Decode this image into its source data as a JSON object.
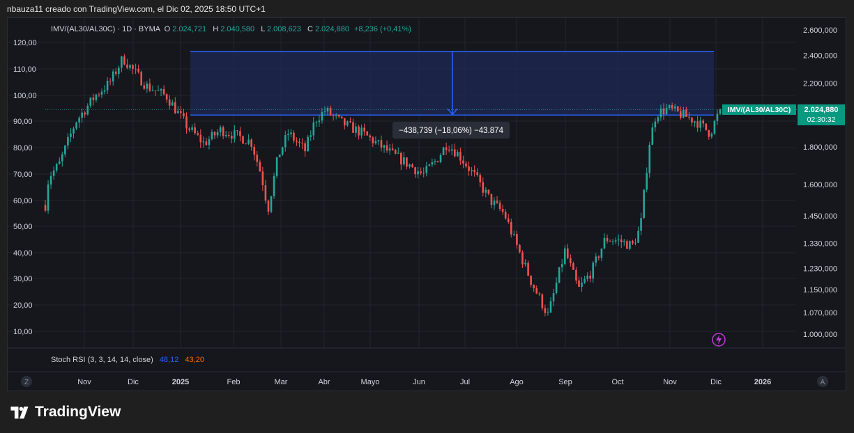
{
  "header": {
    "caption": "nbauza11 creado con TradingView.com, el Dic 02, 2025 18:50 UTC+1"
  },
  "legend": {
    "symbol": "IMV/(AL30/AL30C) · 1D · BYMA",
    "open_label": "O",
    "open": "2.024,721",
    "high_label": "H",
    "high": "2.040,580",
    "low_label": "L",
    "low": "2.008,623",
    "close_label": "C",
    "close": "2.024,880",
    "change": "+8,236 (+0,41%)"
  },
  "measure": {
    "label": "−438,739 (−18,06%) −43.874"
  },
  "price_badge": {
    "symbol": "IMV/(AL30/AL30C)",
    "price": "2.024,880",
    "countdown": "02:30:32"
  },
  "indicator": {
    "name": "Stoch RSI (3, 3, 14, 14, close)",
    "k": "48,12",
    "d": "43,20"
  },
  "scale_buttons": {
    "left": "Z",
    "right": "A"
  },
  "logo": {
    "text": "TradingView"
  },
  "colors": {
    "up": "#26a69a",
    "down": "#ef5350",
    "measure_line": "#2962ff",
    "measure_fill": "#1e2a55",
    "badge": "#089981",
    "k_line": "#2962ff",
    "d_line": "#ff6d00"
  },
  "chart_data": {
    "type": "candlestick",
    "x_ticks": [
      "Nov",
      "Dic",
      "2025",
      "Feb",
      "Mar",
      "Abr",
      "Mayo",
      "Jun",
      "Jul",
      "Ago",
      "Sep",
      "Oct",
      "Nov",
      "Dic",
      "2026"
    ],
    "left_axis_ticks": [
      "120,00",
      "110,00",
      "100,00",
      "90,00",
      "80,00",
      "70,00",
      "60,00",
      "50,00",
      "40,00",
      "30,00",
      "20,00",
      "10,00"
    ],
    "right_axis_ticks": [
      "2.600,000",
      "2.400,000",
      "2.200,000",
      "1.800,000",
      "1.600,000",
      "1.450,000",
      "1.330,000",
      "1.230,000",
      "1.150,000",
      "1.070,000",
      "1.000,000"
    ],
    "right_axis_values": [
      2600000,
      2400000,
      2200000,
      1800000,
      1600000,
      1450000,
      1330000,
      1230000,
      1150000,
      1070000,
      1000000
    ],
    "right_scale": "log",
    "measure_range": {
      "from": 2430000,
      "to": 1990000
    },
    "close_path": [
      [
        0,
        1500000
      ],
      [
        5,
        1640000
      ],
      [
        20,
        1700000
      ],
      [
        45,
        1950000
      ],
      [
        75,
        2120000
      ],
      [
        95,
        2200000
      ],
      [
        115,
        2380000
      ],
      [
        150,
        2180000
      ],
      [
        180,
        2110000
      ],
      [
        210,
        1920000
      ],
      [
        235,
        1820000
      ],
      [
        260,
        1900000
      ],
      [
        280,
        1870000
      ],
      [
        305,
        1830000
      ],
      [
        320,
        1650000
      ],
      [
        330,
        1480000
      ],
      [
        345,
        1750000
      ],
      [
        360,
        1880000
      ],
      [
        385,
        1780000
      ],
      [
        400,
        1960000
      ],
      [
        415,
        2020000
      ],
      [
        440,
        1940000
      ],
      [
        470,
        1880000
      ],
      [
        510,
        1770000
      ],
      [
        540,
        1700000
      ],
      [
        560,
        1650000
      ],
      [
        580,
        1730000
      ],
      [
        595,
        1820000
      ],
      [
        612,
        1760000
      ],
      [
        635,
        1650000
      ],
      [
        660,
        1520000
      ],
      [
        680,
        1460000
      ],
      [
        700,
        1310000
      ],
      [
        720,
        1180000
      ],
      [
        745,
        1060000
      ],
      [
        770,
        1300000
      ],
      [
        790,
        1150000
      ],
      [
        810,
        1220000
      ],
      [
        830,
        1350000
      ],
      [
        850,
        1340000
      ],
      [
        870,
        1320000
      ],
      [
        882,
        1400000
      ],
      [
        895,
        1820000
      ],
      [
        905,
        2000000
      ],
      [
        922,
        2030000
      ],
      [
        945,
        1990000
      ],
      [
        965,
        1950000
      ],
      [
        985,
        1880000
      ],
      [
        1000,
        2024880
      ]
    ],
    "stoch_rsi": {
      "k": 48.12,
      "d": 43.2
    }
  }
}
